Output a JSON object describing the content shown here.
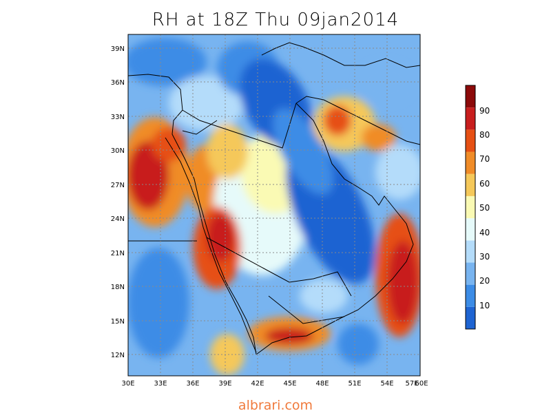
{
  "title": "RH at 18Z Thu 09jan2014",
  "footer": "albrari.com",
  "map": {
    "lon_labels": [
      "30E",
      "33E",
      "36E",
      "39E",
      "42E",
      "45E",
      "48E",
      "51E",
      "54E",
      "57E",
      "60E"
    ],
    "lat_labels": [
      "39N",
      "36N",
      "33N",
      "30N",
      "27N",
      "24N",
      "21N",
      "18N",
      "15N",
      "12N"
    ],
    "lon_range": [
      30,
      60
    ],
    "lat_range": [
      10,
      40
    ],
    "grid": "dotted"
  },
  "colorbar": {
    "labels": [
      "10",
      "20",
      "30",
      "40",
      "50",
      "60",
      "70",
      "80",
      "90"
    ],
    "colors": [
      "#1e64d2",
      "#3c8ce6",
      "#78b4f0",
      "#b4dcfa",
      "#e6fafa",
      "#fafab4",
      "#f5c85a",
      "#f08c28",
      "#e65014",
      "#c81e1e",
      "#8c0a0a"
    ]
  }
}
